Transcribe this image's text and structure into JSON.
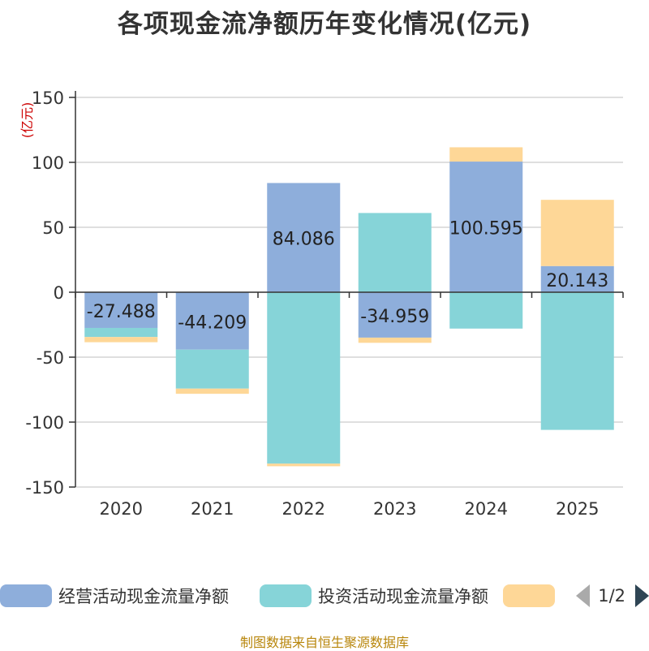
{
  "chart_data": {
    "type": "bar",
    "stacked": true,
    "title": "各项现金流净额历年变化情况(亿元)",
    "ylabel": "(亿元)",
    "xlabel": "",
    "ylim": [
      -150,
      150
    ],
    "yticks": [
      150,
      100,
      50,
      0,
      -50,
      -100,
      -150
    ],
    "categories": [
      "2020",
      "2021",
      "2022",
      "2023",
      "2024",
      "2025"
    ],
    "series": [
      {
        "name": "经营活动现金流量净额",
        "color": "#8eaedb",
        "values": [
          -27.488,
          -44.209,
          84.086,
          -34.959,
          100.595,
          20.143
        ],
        "labels": [
          "-27.488",
          "-44.209",
          "84.086",
          "-34.959",
          "100.595",
          "20.143"
        ]
      },
      {
        "name": "投资活动现金流量净额",
        "color": "#86d4d8",
        "values": [
          -7,
          -30,
          -132,
          61,
          -28,
          -106
        ]
      },
      {
        "name": "",
        "color": "#fed797",
        "values": [
          -4,
          -4,
          -2,
          -4,
          11,
          51
        ]
      }
    ]
  },
  "legend": {
    "page": "1/2"
  },
  "footer": "制图数据来自恒生聚源数据库"
}
